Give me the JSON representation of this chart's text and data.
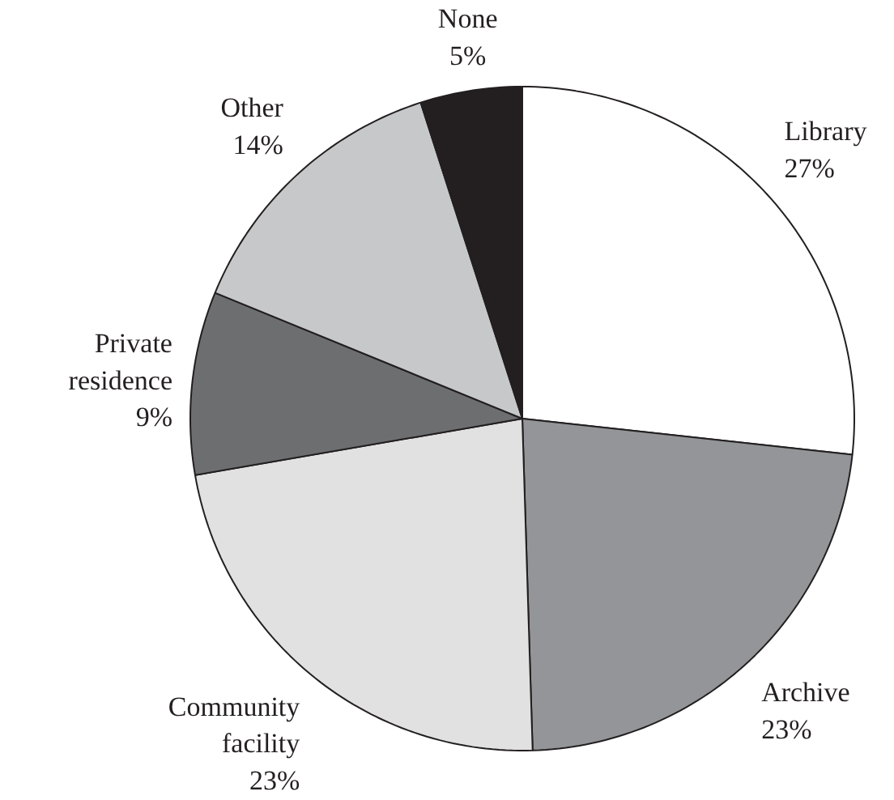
{
  "chart_data": {
    "type": "pie",
    "categories": [
      "Library",
      "Archive",
      "Community facility",
      "Private residence",
      "Other",
      "None"
    ],
    "values": [
      27,
      23,
      23,
      9,
      14,
      5
    ],
    "colors": [
      "#ffffff",
      "#939598",
      "#e1e1e2",
      "#6d6e70",
      "#c7c8ca",
      "#231f20"
    ],
    "value_labels": [
      "27%",
      "23%",
      "23%",
      "9%",
      "14%",
      "5%"
    ]
  }
}
